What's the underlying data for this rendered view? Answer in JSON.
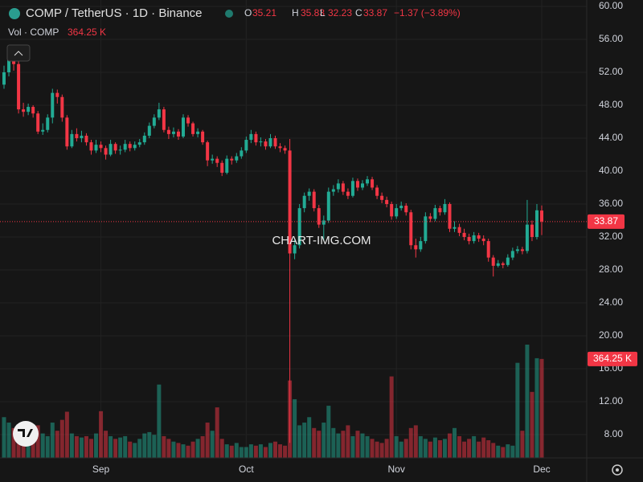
{
  "chart_data": {
    "type": "candlestick",
    "title": "COMP / TetherUS · 1D · Binance",
    "ohlc_letters": [
      "O",
      "H",
      "L",
      "C"
    ],
    "change": "−1.37 (−3.89%)",
    "volume_title": "Vol · COMP",
    "volume_label": "364.25 K",
    "watermark": "CHART-IMG.COM",
    "up_color": "#22ab94",
    "down_color": "#f23645",
    "grid": true,
    "categories": [
      null,
      null,
      null,
      null,
      null,
      null,
      null,
      null,
      null,
      null,
      null,
      null,
      null,
      null,
      null,
      null,
      null,
      null,
      null,
      null,
      "Sep",
      null,
      null,
      null,
      null,
      null,
      null,
      null,
      null,
      null,
      null,
      null,
      null,
      null,
      null,
      null,
      null,
      null,
      null,
      null,
      null,
      null,
      null,
      null,
      null,
      null,
      null,
      null,
      null,
      null,
      "Oct",
      null,
      null,
      null,
      null,
      null,
      null,
      null,
      null,
      null,
      null,
      null,
      null,
      null,
      null,
      null,
      null,
      null,
      null,
      null,
      null,
      null,
      null,
      null,
      null,
      null,
      null,
      null,
      null,
      null,
      null,
      "Nov",
      null,
      null,
      null,
      null,
      null,
      null,
      null,
      null,
      null,
      null,
      null,
      null,
      null,
      null,
      null,
      null,
      null,
      null,
      null,
      null,
      null,
      null,
      null,
      null,
      null,
      null,
      null,
      null,
      null,
      "Dec"
    ],
    "open": [
      50.5,
      52.0,
      53.5,
      53.0,
      47.5,
      47.2,
      47.8,
      47.0,
      44.8,
      45.0,
      46.5,
      49.5,
      49.0,
      46.5,
      43.0,
      44.5,
      44.0,
      44.3,
      43.5,
      42.5,
      43.2,
      42.8,
      42.0,
      43.3,
      42.5,
      42.6,
      43.3,
      42.8,
      43.2,
      43.5,
      44.3,
      45.5,
      46.5,
      47.5,
      45.0,
      44.5,
      44.8,
      44.2,
      46.5,
      45.8,
      44.5,
      44.8,
      43.5,
      41.3,
      41.5,
      41.0,
      39.8,
      41.5,
      41.3,
      41.8,
      42.5,
      43.8,
      44.5,
      43.5,
      43.6,
      43.0,
      44.0,
      43.0,
      42.8,
      42.5,
      30.0,
      31.0,
      35.5,
      37.0,
      37.5,
      35.5,
      33.5,
      34.0,
      37.5,
      37.8,
      38.5,
      37.5,
      37.0,
      38.8,
      38.0,
      38.5,
      39.0,
      38.0,
      37.0,
      36.5,
      36.0,
      34.5,
      35.5,
      35.8,
      35.0,
      31.0,
      30.5,
      31.5,
      34.5,
      34.2,
      35.5,
      35.0,
      36.0,
      33.0,
      33.2,
      32.5,
      32.0,
      31.5,
      32.2,
      31.8,
      31.5,
      29.5,
      28.5,
      28.8,
      28.6,
      29.5,
      30.3,
      30.5,
      30.3,
      33.5,
      32.0,
      35.21
    ],
    "high": [
      52.8,
      54.2,
      54.5,
      53.4,
      48.3,
      48.2,
      48.0,
      47.3,
      45.8,
      46.9,
      50.0,
      49.9,
      49.3,
      46.8,
      45.0,
      45.2,
      44.9,
      44.6,
      43.8,
      43.8,
      43.6,
      43.1,
      43.8,
      43.5,
      43.1,
      43.8,
      43.6,
      43.6,
      43.9,
      44.7,
      45.9,
      46.9,
      48.3,
      47.8,
      45.4,
      45.3,
      45.1,
      46.9,
      46.8,
      46.0,
      45.2,
      45.0,
      43.7,
      42.0,
      41.8,
      41.3,
      41.9,
      41.8,
      42.2,
      42.9,
      44.2,
      45.0,
      44.8,
      44.1,
      43.9,
      44.5,
      44.3,
      43.4,
      43.1,
      43.9,
      31.8,
      36.0,
      37.4,
      37.9,
      37.8,
      35.9,
      34.6,
      38.0,
      38.3,
      39.0,
      38.8,
      37.9,
      39.2,
      39.1,
      38.9,
      39.4,
      39.3,
      38.3,
      37.4,
      36.9,
      36.3,
      36.0,
      36.3,
      36.1,
      35.3,
      31.8,
      32.0,
      35.0,
      34.9,
      35.9,
      35.8,
      36.6,
      36.2,
      33.9,
      33.6,
      33.0,
      32.4,
      32.6,
      32.5,
      32.2,
      31.8,
      29.8,
      29.2,
      29.0,
      29.9,
      30.7,
      30.9,
      30.8,
      36.5,
      34.0,
      36.0,
      35.83
    ],
    "low": [
      50.0,
      51.5,
      52.2,
      47.0,
      46.6,
      46.8,
      46.5,
      44.5,
      44.4,
      44.7,
      45.8,
      48.2,
      46.0,
      42.6,
      42.8,
      43.6,
      43.5,
      43.1,
      42.0,
      42.2,
      42.3,
      41.4,
      41.8,
      42.1,
      42.0,
      42.3,
      42.4,
      42.5,
      42.9,
      43.2,
      44.0,
      45.2,
      46.2,
      44.7,
      43.9,
      44.1,
      43.8,
      44.0,
      45.4,
      44.2,
      44.1,
      43.2,
      40.6,
      40.9,
      40.5,
      39.4,
      39.6,
      40.8,
      41.0,
      41.5,
      42.2,
      43.4,
      43.1,
      43.0,
      42.6,
      42.8,
      42.7,
      42.3,
      42.1,
      7.0,
      29.3,
      30.6,
      35.0,
      36.4,
      35.1,
      33.1,
      31.5,
      33.7,
      37.0,
      37.4,
      37.1,
      36.6,
      36.8,
      37.6,
      37.7,
      38.2,
      37.7,
      36.6,
      36.1,
      35.6,
      34.1,
      34.2,
      35.2,
      34.6,
      30.5,
      29.5,
      30.2,
      31.2,
      33.8,
      33.9,
      34.6,
      34.7,
      32.6,
      32.6,
      32.1,
      31.6,
      31.1,
      31.2,
      31.4,
      31.0,
      29.0,
      27.2,
      28.3,
      28.2,
      28.4,
      29.2,
      30.0,
      29.9,
      30.0,
      31.5,
      31.7,
      32.23
    ],
    "close": [
      52.0,
      53.5,
      53.0,
      47.5,
      47.2,
      47.8,
      47.0,
      44.8,
      45.0,
      46.5,
      49.5,
      49.0,
      46.5,
      43.0,
      44.5,
      44.0,
      44.3,
      43.5,
      42.5,
      43.2,
      42.8,
      42.0,
      43.3,
      42.5,
      42.6,
      43.3,
      42.8,
      43.2,
      43.5,
      44.3,
      45.5,
      46.5,
      47.5,
      45.0,
      44.5,
      44.8,
      44.2,
      46.5,
      45.8,
      44.5,
      44.8,
      43.5,
      41.3,
      41.5,
      41.0,
      39.8,
      41.5,
      41.3,
      41.8,
      42.5,
      43.8,
      44.5,
      43.5,
      43.6,
      43.0,
      44.0,
      43.0,
      42.8,
      42.5,
      30.0,
      31.0,
      35.5,
      37.0,
      37.5,
      35.5,
      33.5,
      34.0,
      37.5,
      37.8,
      38.5,
      37.5,
      37.0,
      38.8,
      38.0,
      38.5,
      39.0,
      38.0,
      37.0,
      36.5,
      36.0,
      34.5,
      35.5,
      35.8,
      35.0,
      31.0,
      30.5,
      31.5,
      34.5,
      34.2,
      35.5,
      35.0,
      36.0,
      33.0,
      33.2,
      32.5,
      32.0,
      31.5,
      32.2,
      31.8,
      31.5,
      29.5,
      28.5,
      28.8,
      28.6,
      29.5,
      30.3,
      30.5,
      30.3,
      33.5,
      32.0,
      35.24,
      33.87
    ],
    "volume": [
      150,
      130,
      110,
      120,
      100,
      90,
      110,
      120,
      90,
      80,
      130,
      100,
      140,
      170,
      90,
      80,
      75,
      80,
      70,
      90,
      172,
      100,
      80,
      70,
      75,
      80,
      60,
      55,
      70,
      90,
      95,
      85,
      270,
      80,
      70,
      60,
      55,
      50,
      45,
      60,
      70,
      80,
      130,
      100,
      186,
      70,
      50,
      45,
      55,
      40,
      40,
      50,
      45,
      50,
      40,
      55,
      60,
      50,
      45,
      285,
      216,
      120,
      130,
      150,
      110,
      100,
      130,
      192,
      110,
      90,
      100,
      120,
      80,
      100,
      90,
      80,
      70,
      60,
      55,
      70,
      300,
      80,
      60,
      70,
      110,
      120,
      80,
      70,
      60,
      75,
      65,
      70,
      90,
      110,
      80,
      60,
      70,
      80,
      60,
      75,
      65,
      55,
      45,
      40,
      50,
      45,
      350,
      100,
      417,
      243,
      367,
      364.25
    ],
    "ylim": [
      5.17,
      60.78
    ],
    "yticks": [
      {
        "value": 8,
        "label": "8.00"
      },
      {
        "value": 12,
        "label": "12.00"
      },
      {
        "value": 16,
        "label": "16.00"
      },
      {
        "value": 20,
        "label": "20.00"
      },
      {
        "value": 24,
        "label": "24.00"
      },
      {
        "value": 28,
        "label": "28.00"
      },
      {
        "value": 32,
        "label": "32.00"
      },
      {
        "value": 36,
        "label": "36.00"
      },
      {
        "value": 40,
        "label": "40.00"
      },
      {
        "value": 44,
        "label": "44.00"
      },
      {
        "value": 48,
        "label": "48.00"
      },
      {
        "value": 52,
        "label": "52.00"
      },
      {
        "value": 56,
        "label": "56.00"
      },
      {
        "value": 60,
        "label": "60.00"
      }
    ]
  }
}
